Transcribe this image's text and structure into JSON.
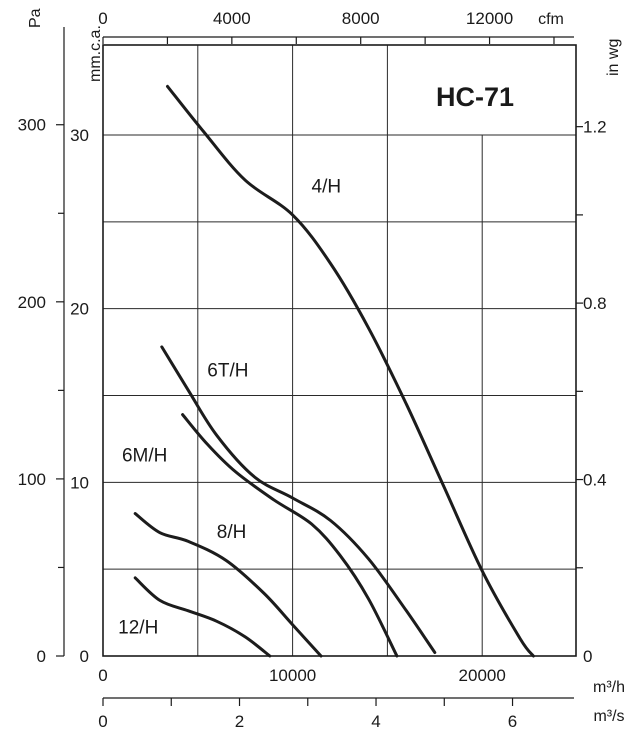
{
  "chart_data": {
    "type": "line",
    "title": "HC-71",
    "x_axes": {
      "m3h": {
        "label": "m³/h",
        "ticks": [
          "0",
          "10000",
          "20000"
        ],
        "range": [
          0,
          25000
        ]
      },
      "m3s": {
        "label": "m³/s",
        "ticks": [
          "0",
          "2",
          "4",
          "6"
        ]
      },
      "cfm": {
        "label": "cfm",
        "ticks": [
          "0",
          "4000",
          "8000",
          "12000"
        ]
      }
    },
    "y_axes": {
      "pa": {
        "label": "Pa",
        "ticks": [
          "0",
          "100",
          "200",
          "300"
        ]
      },
      "mmca": {
        "label": "mm.c.a.",
        "ticks": [
          "0",
          "10",
          "20",
          "30"
        ],
        "range": [
          0,
          35
        ]
      },
      "inwg": {
        "label": "in wg",
        "ticks": [
          "0",
          "0.4",
          "0.8",
          "1.2"
        ]
      }
    },
    "grid": true,
    "x_unit": "m3/h",
    "y_unit": "mm.c.a.",
    "series": [
      {
        "name": "4/H",
        "x": [
          3400,
          5300,
          7500,
          10000,
          12000,
          14000,
          16000,
          18000,
          20000,
          22000,
          22700
        ],
        "y": [
          32.8,
          30.2,
          27.4,
          25.4,
          22.6,
          18.9,
          14.5,
          9.7,
          4.9,
          1.0,
          0
        ]
      },
      {
        "name": "6T/H",
        "x": [
          3100,
          4500,
          6000,
          8000,
          10000,
          12000,
          14000,
          16000,
          17500
        ],
        "y": [
          17.8,
          15.3,
          12.7,
          10.3,
          9.1,
          7.8,
          5.6,
          2.6,
          0.2
        ]
      },
      {
        "name": "6M/H",
        "x": [
          4200,
          5500,
          7000,
          9000,
          11000,
          12500,
          14000,
          15500
        ],
        "y": [
          13.9,
          12.2,
          10.6,
          9.0,
          7.6,
          5.8,
          3.3,
          0
        ]
      },
      {
        "name": "8/H",
        "x": [
          1700,
          3000,
          4500,
          6500,
          8500,
          10000,
          11500
        ],
        "y": [
          8.2,
          7.1,
          6.6,
          5.5,
          3.6,
          1.8,
          0
        ]
      },
      {
        "name": "12/H",
        "x": [
          1700,
          3000,
          4500,
          6000,
          7500,
          8800
        ],
        "y": [
          4.5,
          3.2,
          2.6,
          2.0,
          1.1,
          0
        ]
      }
    ],
    "curve_labels": [
      {
        "text": "4/H",
        "x": 11000,
        "y": 26.7
      },
      {
        "text": "6T/H",
        "x": 5500,
        "y": 16.1
      },
      {
        "text": "6M/H",
        "x": 1000,
        "y": 11.2
      },
      {
        "text": "8/H",
        "x": 6000,
        "y": 6.8
      },
      {
        "text": "12/H",
        "x": 800,
        "y": 1.3
      }
    ]
  }
}
